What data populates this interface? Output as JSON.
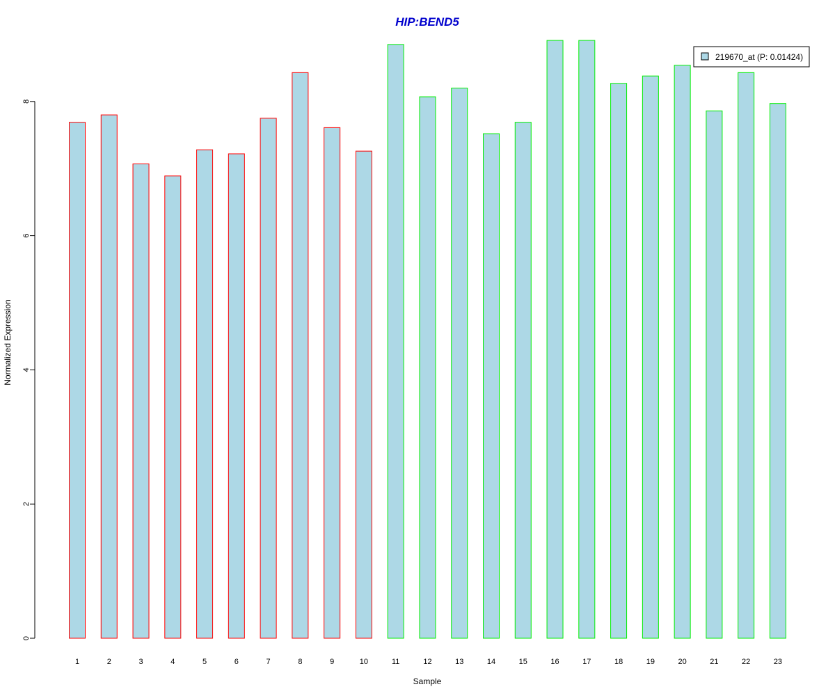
{
  "chart_data": {
    "type": "bar",
    "title": "HIP:BEND5",
    "xlabel": "Sample",
    "ylabel": "Normalized Expression",
    "categories": [
      "1",
      "2",
      "3",
      "4",
      "5",
      "6",
      "7",
      "8",
      "9",
      "10",
      "11",
      "12",
      "13",
      "14",
      "15",
      "16",
      "17",
      "18",
      "19",
      "20",
      "21",
      "22",
      "23"
    ],
    "series": [
      {
        "name": "219670_at (P: 0.01424)",
        "values": [
          7.69,
          7.8,
          7.07,
          6.89,
          7.28,
          7.22,
          7.75,
          8.43,
          7.61,
          7.26,
          8.85,
          8.07,
          8.2,
          7.52,
          7.69,
          8.91,
          8.91,
          8.27,
          8.38,
          8.54,
          7.86,
          8.43,
          7.97
        ]
      }
    ],
    "groups": [
      {
        "samples": [
          1,
          2,
          3,
          4,
          5,
          6,
          7,
          8,
          9,
          10
        ],
        "border_color": "#ff0000"
      },
      {
        "samples": [
          11,
          12,
          13,
          14,
          15,
          16,
          17,
          18,
          19,
          20,
          21,
          22,
          23
        ],
        "border_color": "#00ee00"
      }
    ],
    "yticks": [
      0,
      2,
      4,
      6,
      8
    ],
    "ylim": [
      0,
      9.2
    ],
    "grid": false,
    "legend_position": "top-right",
    "colors": {
      "bar_fill": "#add8e6",
      "title": "#0000cd",
      "axis": "#000000"
    }
  }
}
